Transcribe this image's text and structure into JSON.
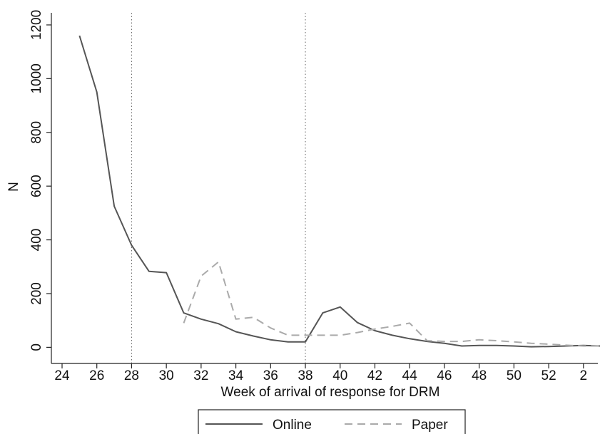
{
  "chart_data": {
    "type": "line",
    "x_label": "Week of arrival of response for DRM",
    "y_label": "N",
    "categories": [
      "24",
      null,
      "26",
      null,
      "28",
      null,
      "30",
      null,
      "32",
      null,
      "34",
      null,
      "36",
      null,
      "38",
      null,
      "40",
      null,
      "42",
      null,
      "44",
      null,
      "46",
      null,
      "48",
      null,
      "50",
      null,
      "52",
      null,
      "2",
      null
    ],
    "series": [
      {
        "name": "Online",
        "color": "#555555",
        "dash": "solid",
        "values": [
          null,
          1160,
          950,
          525,
          380,
          283,
          278,
          128,
          105,
          88,
          58,
          42,
          28,
          20,
          20,
          128,
          150,
          92,
          62,
          45,
          32,
          22,
          15,
          5,
          7,
          7,
          5,
          2,
          3,
          5,
          7,
          5
        ]
      },
      {
        "name": "Paper",
        "color": "#aaaaaa",
        "dash": "dashed",
        "values": [
          null,
          null,
          null,
          null,
          null,
          null,
          null,
          90,
          265,
          318,
          105,
          112,
          72,
          45,
          45,
          45,
          45,
          55,
          68,
          78,
          90,
          25,
          22,
          22,
          28,
          25,
          20,
          15,
          12,
          8,
          5,
          5
        ]
      }
    ],
    "vlines": [
      "28",
      "38"
    ],
    "ylim": [
      -60,
      1245
    ],
    "yticks": [
      0,
      200,
      400,
      600,
      800,
      1000,
      1200
    ],
    "legend": "bottom"
  }
}
